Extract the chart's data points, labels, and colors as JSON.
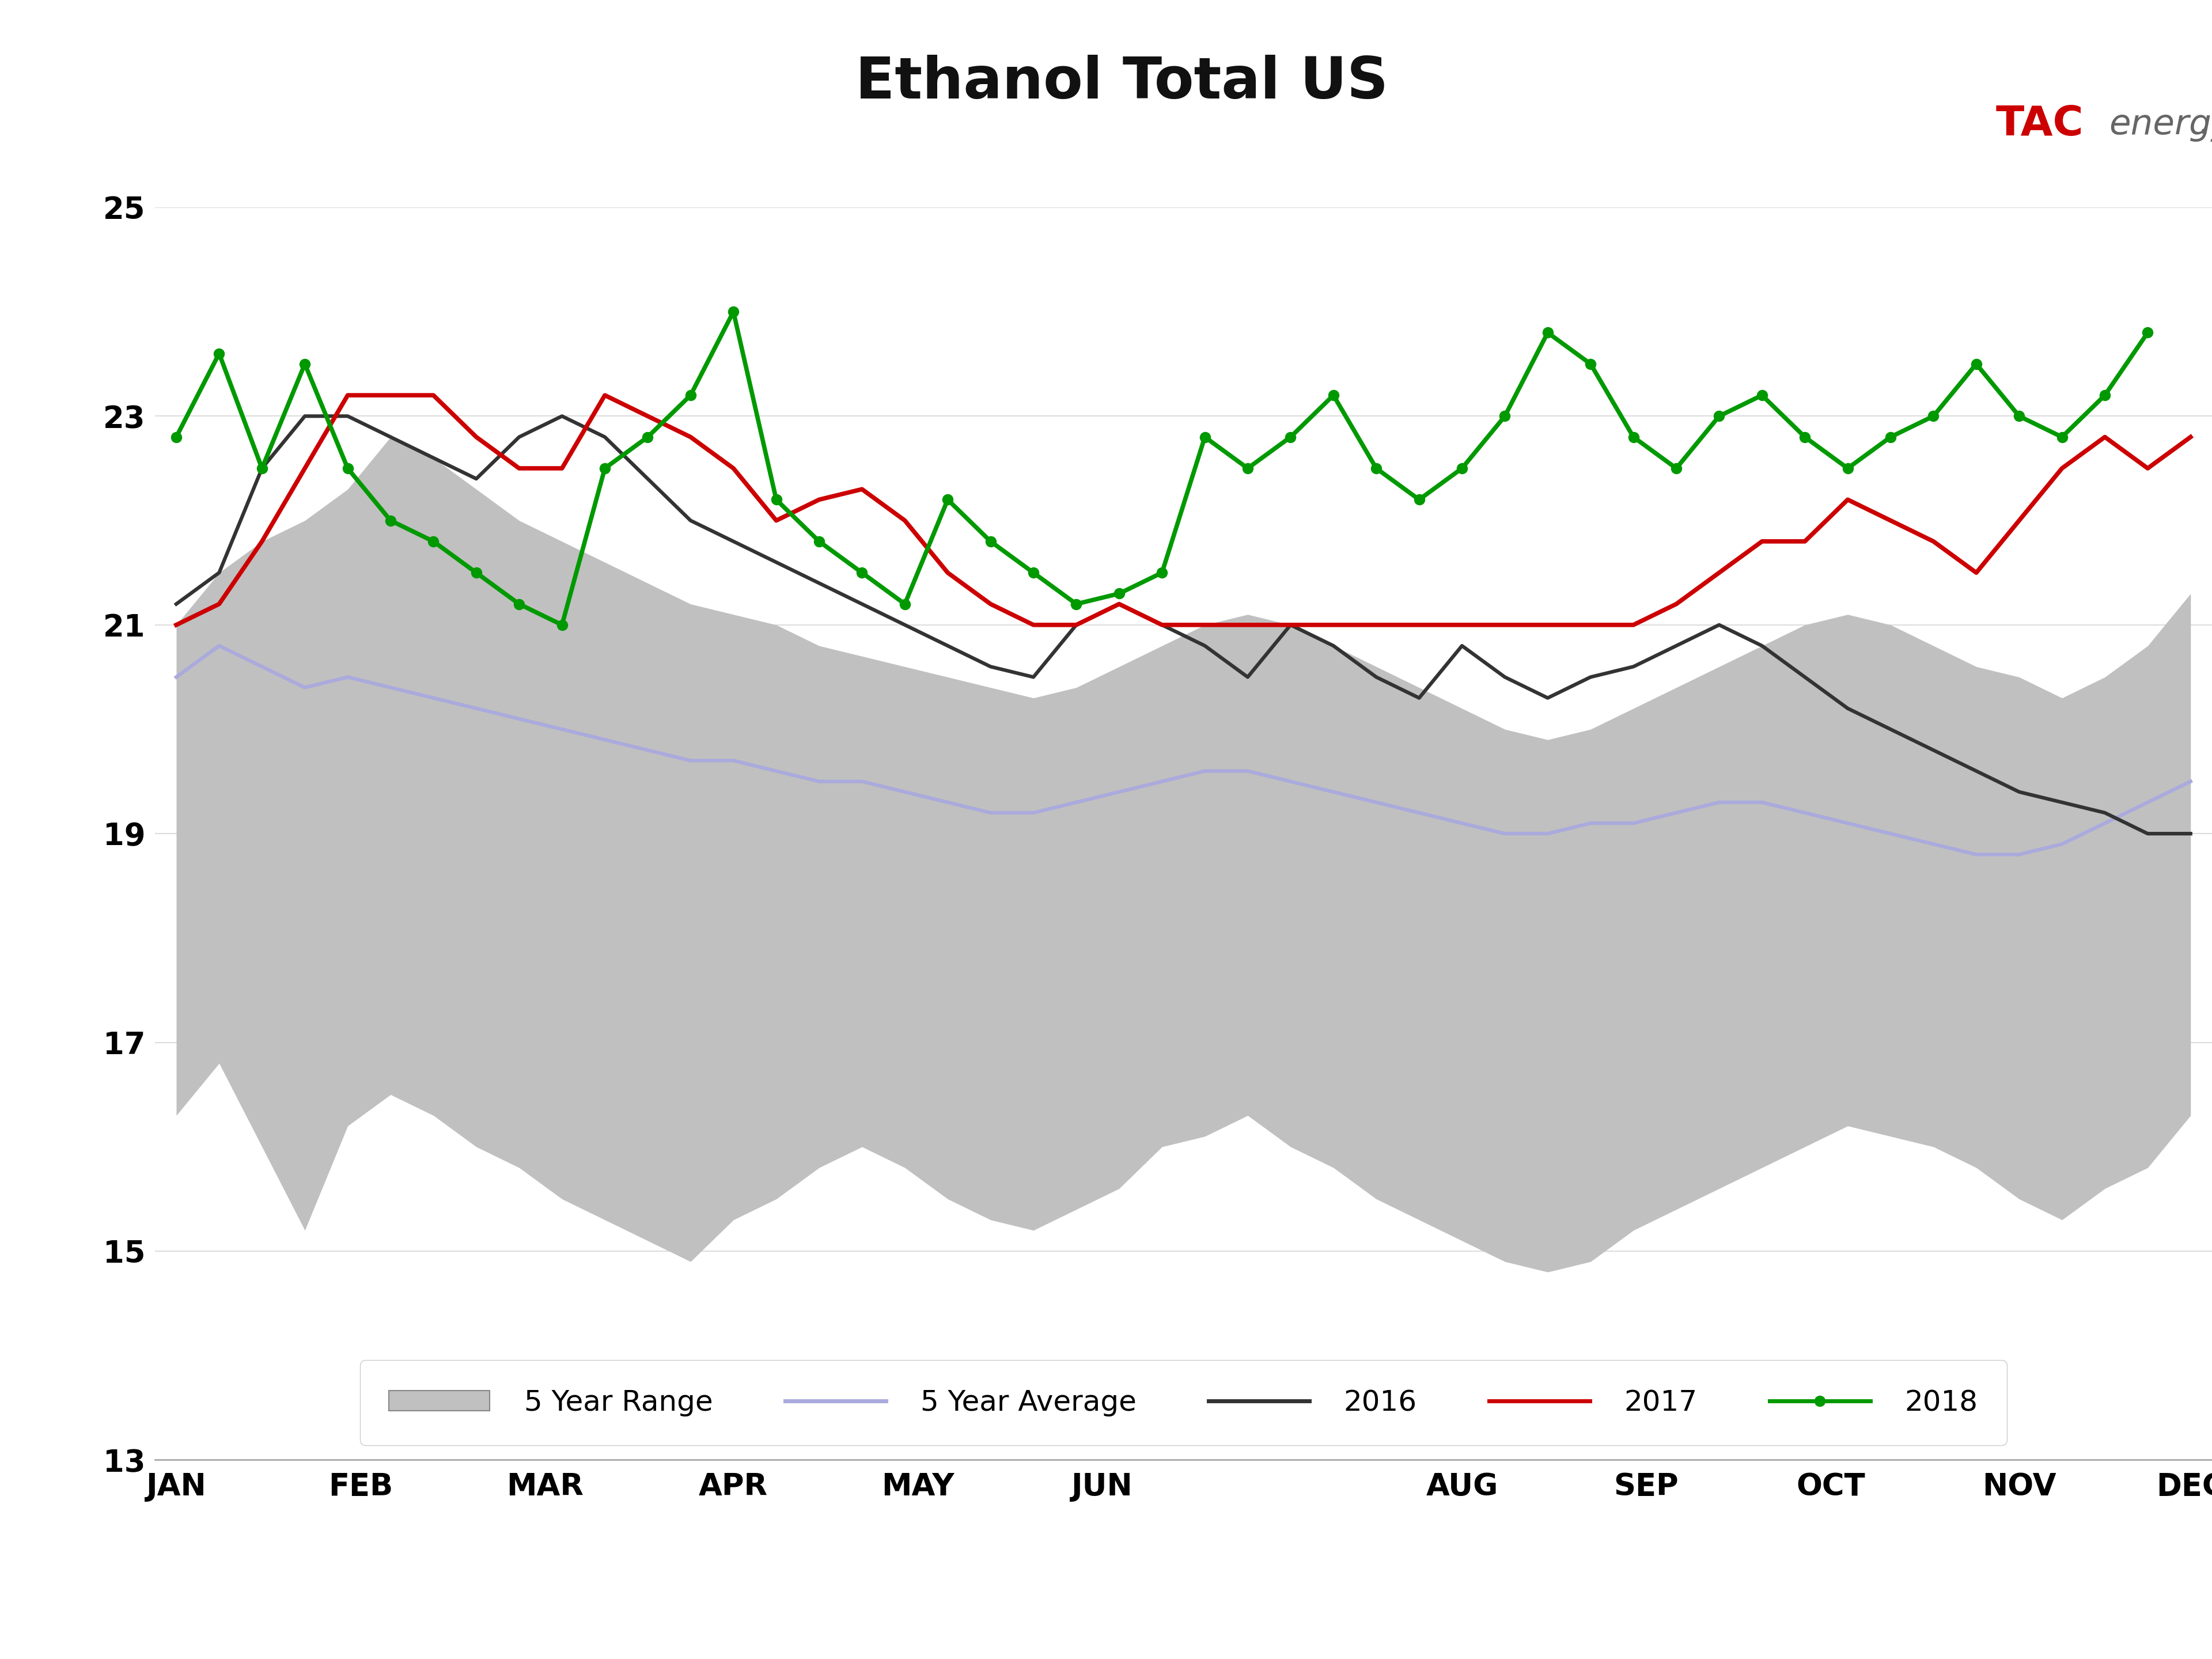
{
  "title": "Ethanol Total US",
  "title_fontsize": 72,
  "header_bg_color": "#b0b4b8",
  "blue_bar_color": "#1a6cb5",
  "tac_color_tac": "#CC0000",
  "tac_color_energy": "#666666",
  "ylim": [
    13,
    25
  ],
  "yticks": [
    13,
    15,
    17,
    19,
    21,
    23,
    25
  ],
  "month_labels": [
    "JAN",
    "FEB",
    "MAR",
    "APR",
    "MAY",
    "JUN",
    "AUG",
    "SEP",
    "OCT",
    "NOV",
    "DEC"
  ],
  "range_low": [
    16.3,
    16.8,
    16.0,
    15.2,
    16.2,
    16.5,
    16.3,
    16.0,
    15.8,
    15.5,
    15.3,
    15.1,
    14.9,
    15.3,
    15.5,
    15.8,
    16.0,
    15.8,
    15.5,
    15.3,
    15.2,
    15.4,
    15.6,
    16.0,
    16.1,
    16.3,
    16.0,
    15.8,
    15.5,
    15.3,
    15.1,
    14.9,
    14.8,
    14.9,
    15.2,
    15.4,
    15.6,
    15.8,
    16.0,
    16.2,
    16.1,
    16.0,
    15.8,
    15.5,
    15.3,
    15.6,
    15.8,
    16.3
  ],
  "range_high": [
    21.0,
    21.5,
    21.8,
    22.0,
    22.3,
    22.8,
    22.6,
    22.3,
    22.0,
    21.8,
    21.6,
    21.4,
    21.2,
    21.1,
    21.0,
    20.8,
    20.7,
    20.6,
    20.5,
    20.4,
    20.3,
    20.4,
    20.6,
    20.8,
    21.0,
    21.1,
    21.0,
    20.8,
    20.6,
    20.4,
    20.2,
    20.0,
    19.9,
    20.0,
    20.2,
    20.4,
    20.6,
    20.8,
    21.0,
    21.1,
    21.0,
    20.8,
    20.6,
    20.5,
    20.3,
    20.5,
    20.8,
    21.3
  ],
  "avg_5yr": [
    20.5,
    20.8,
    20.6,
    20.4,
    20.5,
    20.4,
    20.3,
    20.2,
    20.1,
    20.0,
    19.9,
    19.8,
    19.7,
    19.7,
    19.6,
    19.5,
    19.5,
    19.4,
    19.3,
    19.2,
    19.2,
    19.3,
    19.4,
    19.5,
    19.6,
    19.6,
    19.5,
    19.4,
    19.3,
    19.2,
    19.1,
    19.0,
    19.0,
    19.1,
    19.1,
    19.2,
    19.3,
    19.3,
    19.2,
    19.1,
    19.0,
    18.9,
    18.8,
    18.8,
    18.9,
    19.1,
    19.3,
    19.5
  ],
  "line_2016": [
    21.2,
    21.5,
    22.5,
    23.0,
    23.0,
    22.8,
    22.6,
    22.4,
    22.8,
    23.0,
    22.8,
    22.4,
    22.0,
    21.8,
    21.6,
    21.4,
    21.2,
    21.0,
    20.8,
    20.6,
    20.5,
    21.0,
    21.2,
    21.0,
    20.8,
    20.5,
    21.0,
    20.8,
    20.5,
    20.3,
    20.8,
    20.5,
    20.3,
    20.5,
    20.6,
    20.8,
    21.0,
    20.8,
    20.5,
    20.2,
    20.0,
    19.8,
    19.6,
    19.4,
    19.3,
    19.2,
    19.0,
    19.0
  ],
  "line_2017": [
    21.0,
    21.2,
    21.8,
    22.5,
    23.2,
    23.2,
    23.2,
    22.8,
    22.5,
    22.5,
    23.2,
    23.0,
    22.8,
    22.5,
    22.0,
    22.2,
    22.3,
    22.0,
    21.5,
    21.2,
    21.0,
    21.0,
    21.2,
    21.0,
    21.0,
    21.0,
    21.0,
    21.0,
    21.0,
    21.0,
    21.0,
    21.0,
    21.0,
    21.0,
    21.0,
    21.2,
    21.5,
    21.8,
    21.8,
    22.2,
    22.0,
    21.8,
    21.5,
    22.0,
    22.5,
    22.8,
    22.5,
    22.8
  ],
  "line_2018": [
    22.8,
    23.6,
    22.5,
    23.5,
    22.5,
    22.0,
    21.8,
    21.5,
    21.2,
    21.0,
    22.5,
    22.8,
    23.2,
    24.0,
    22.2,
    21.8,
    21.5,
    21.2,
    22.2,
    21.8,
    21.5,
    21.2,
    21.3,
    21.5,
    22.8,
    22.5,
    22.8,
    23.2,
    22.5,
    22.2,
    22.5,
    23.0,
    23.8,
    23.5,
    22.8,
    22.5,
    23.0,
    23.2,
    22.8,
    22.5,
    22.8,
    23.0,
    23.5,
    23.0,
    22.8,
    23.2,
    23.8,
    null
  ],
  "range_color": "#c0c0c0",
  "avg_color": "#aaaadd",
  "color_2016": "#333333",
  "color_2017": "#cc0000",
  "color_2018": "#009900",
  "background_color": "#ffffff",
  "legend_labels": [
    "5 Year Range",
    "5 Year Average",
    "2016",
    "2017",
    "2018"
  ]
}
